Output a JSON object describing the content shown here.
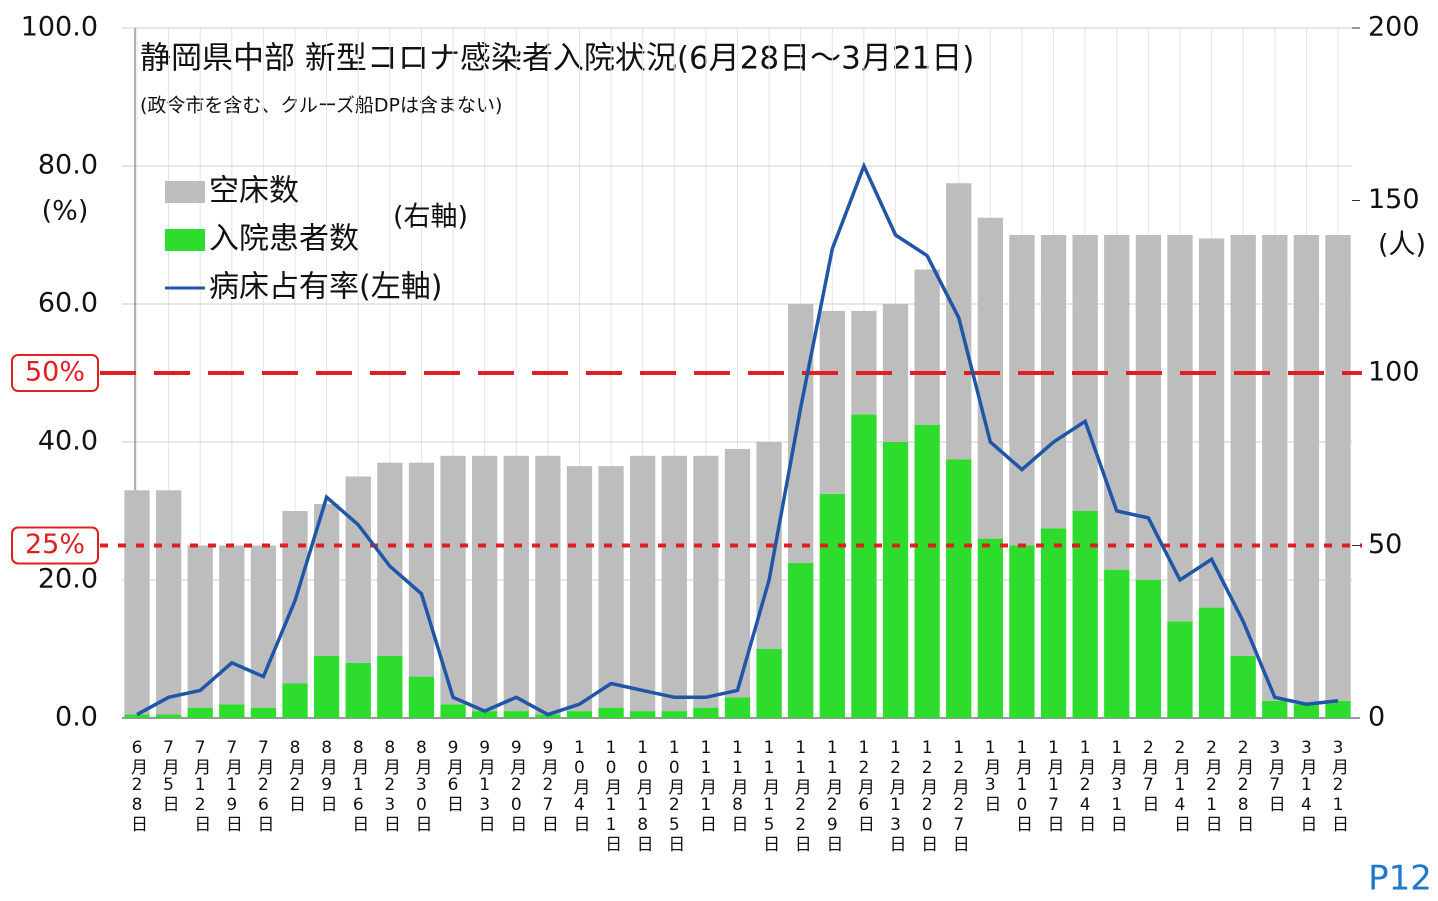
{
  "chart_data": {
    "type": "bar_line",
    "title": "静岡県中部 新型コロナ感染者入院状況(6月28日～3月21日)",
    "subtitle": "(政令市を含む、クルーズ船DPは含まない)",
    "y_unit": "(%)",
    "y2_unit": "(人)",
    "legend_note": "(右軸)",
    "page_label": "P12",
    "categories": [
      "6月28日",
      "7月5日",
      "7月12日",
      "7月19日",
      "7月26日",
      "8月2日",
      "8月9日",
      "8月16日",
      "8月23日",
      "8月30日",
      "9月6日",
      "9月13日",
      "9月20日",
      "9月27日",
      "10月4日",
      "10月11日",
      "10月18日",
      "10月25日",
      "11月1日",
      "11月8日",
      "11月15日",
      "11月22日",
      "11月29日",
      "12月6日",
      "12月13日",
      "12月20日",
      "12月27日",
      "1月3日",
      "1月10日",
      "1月17日",
      "1月24日",
      "1月31日",
      "2月7日",
      "2月14日",
      "2月21日",
      "2月28日",
      "3月7日",
      "3月14日",
      "3月21日"
    ],
    "series": [
      {
        "name": "入院患者数",
        "color": "#2edc2e",
        "axis": "y2",
        "kind": "bar",
        "values": [
          1,
          1,
          3,
          4,
          3,
          10,
          18,
          16,
          18,
          12,
          4,
          2,
          2,
          1,
          2,
          3,
          2,
          2,
          3,
          6,
          20,
          45,
          65,
          88,
          80,
          85,
          75,
          52,
          50,
          55,
          60,
          43,
          40,
          28,
          32,
          18,
          5,
          4,
          5
        ]
      },
      {
        "name": "空床数",
        "color": "#bdbdbd",
        "axis": "y2",
        "kind": "bar",
        "values": [
          65,
          65,
          47,
          46,
          47,
          50,
          44,
          54,
          56,
          62,
          72,
          74,
          74,
          75,
          71,
          70,
          74,
          74,
          73,
          72,
          60,
          75,
          53,
          30,
          40,
          45,
          80,
          93,
          90,
          85,
          80,
          97,
          100,
          112,
          107,
          122,
          135,
          136,
          135
        ]
      },
      {
        "name": "病床占有率(左軸)",
        "color": "#1f56a8",
        "axis": "y",
        "kind": "line",
        "values": [
          0.5,
          3,
          4,
          8,
          6,
          17,
          32,
          28,
          22,
          18,
          3,
          1,
          3,
          0.5,
          2,
          5,
          4,
          3,
          3,
          4,
          20,
          45,
          68,
          80,
          70,
          67,
          58,
          40,
          36,
          40,
          43,
          30,
          29,
          20,
          23,
          14,
          3,
          2,
          2.5
        ]
      }
    ],
    "ylim": [
      0,
      100
    ],
    "yticks": [
      {
        "value": 0,
        "label": "0.0"
      },
      {
        "value": 20,
        "label": "20.0"
      },
      {
        "value": 40,
        "label": "40.0"
      },
      {
        "value": 60,
        "label": "60.0"
      },
      {
        "value": 80,
        "label": "80.0"
      },
      {
        "value": 100,
        "label": "100.0"
      }
    ],
    "y2lim": [
      0,
      200
    ],
    "y2ticks": [
      0,
      50,
      100,
      150,
      200
    ],
    "reference_lines": [
      {
        "value": 50,
        "label": "50%",
        "color": "#e02020"
      },
      {
        "value": 25,
        "label": "25%",
        "color": "#e02020"
      }
    ],
    "grid": true
  }
}
